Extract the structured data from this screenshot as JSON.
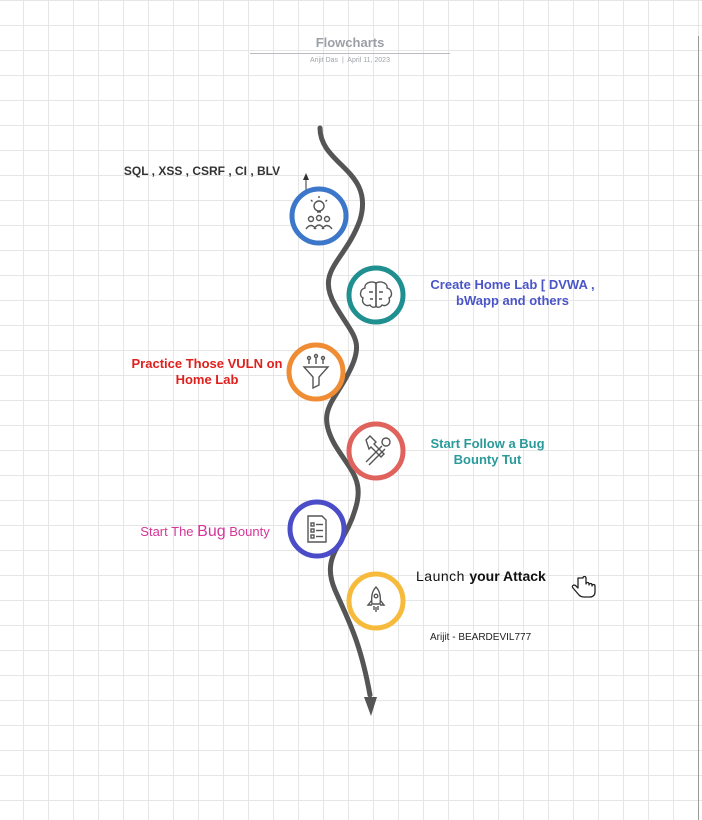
{
  "header": {
    "title": "Flowcharts",
    "author": "Arijit Das",
    "date": "April 11, 2023"
  },
  "steps": [
    {
      "text": "SQL , XSS , CSRF , CI , BLV",
      "icon": "idea-team-icon",
      "color": "#3d77c9"
    },
    {
      "text": "Create Home Lab [ DVWA , bWapp and others",
      "icon": "brain-icon",
      "color": "#1f8f8f"
    },
    {
      "text": "Practice  Those VULN on Home Lab",
      "icon": "funnel-icon",
      "color": "#f08c33"
    },
    {
      "text": "Start Follow a Bug Bounty Tut",
      "icon": "tools-icon",
      "color": "#e0625c"
    },
    {
      "text_pre": "Start The ",
      "text_big": "Bug",
      "text_post": " Bounty",
      "icon": "checklist-icon",
      "color": "#4b4dc8"
    },
    {
      "text_pre": "Launch ",
      "text_post": " your Attack",
      "icon": "rocket-icon",
      "color": "#f6bb3c"
    }
  ],
  "signature": "Arijit  - BEARDEVIL777",
  "colors": {
    "path": "#555555"
  }
}
